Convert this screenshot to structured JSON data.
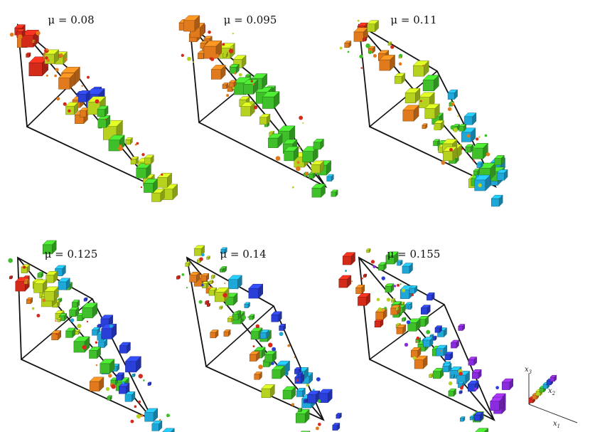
{
  "panels": [
    {
      "title": "μ = 0.08",
      "mu": 0.08
    },
    {
      "title": "μ = 0.095",
      "mu": 0.095
    },
    {
      "title": "μ = 0.11",
      "mu": 0.11
    },
    {
      "title": "μ = 0.125",
      "mu": 0.125
    },
    {
      "title": "μ = 0.14",
      "mu": 0.14
    },
    {
      "title": "μ = 0.155",
      "mu": 0.155
    }
  ],
  "axes_legend": {
    "x1": {
      "var": "x",
      "sub": "1"
    },
    "x2": {
      "var": "x",
      "sub": "2"
    },
    "x3": {
      "var": "x",
      "sub": "3"
    }
  },
  "colors": {
    "frame": "#111111",
    "red": "#d42a1a",
    "orange": "#e07a1c",
    "yellow_green": "#b6d21e",
    "green": "#3fbf2a",
    "cyan": "#1fa7d8",
    "blue": "#2a3fd8",
    "violet": "#8a2be0"
  }
}
